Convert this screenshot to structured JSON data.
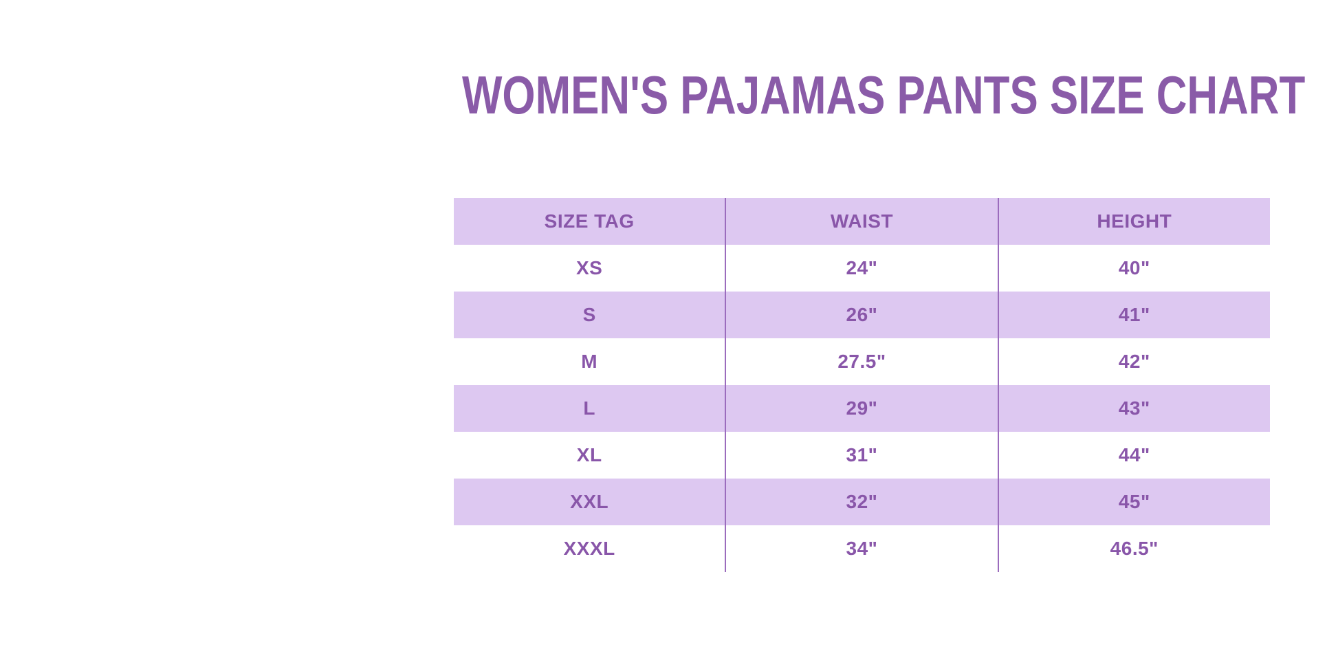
{
  "page": {
    "background": "#ffffff"
  },
  "title": {
    "text": "WOMEN'S PAJAMAS PANTS SIZE CHART",
    "color": "#8a5ba8"
  },
  "chart_data": {
    "type": "table",
    "title": "WOMEN'S PAJAMAS PANTS SIZE CHART",
    "columns": [
      "SIZE TAG",
      "WAIST",
      "HEIGHT"
    ],
    "rows": [
      [
        "XS",
        "24\"",
        "40\""
      ],
      [
        "S",
        "26\"",
        "41\""
      ],
      [
        "M",
        "27.5\"",
        "42\""
      ],
      [
        "L",
        "29\"",
        "43\""
      ],
      [
        "XL",
        "31\"",
        "44\""
      ],
      [
        "XXL",
        "32\"",
        "45\""
      ],
      [
        "XXXL",
        "34\"",
        "46.5\""
      ]
    ],
    "striped_rows": [
      "header",
      "S",
      "L",
      "XXL"
    ],
    "colors": {
      "stripe_bg": "#ddc8f1",
      "text": "#8956a9",
      "divider": "#9b6cbd",
      "title": "#8a5ba8"
    },
    "layout_hints": {
      "grid": "vertical column dividers only",
      "legend": "none"
    }
  }
}
